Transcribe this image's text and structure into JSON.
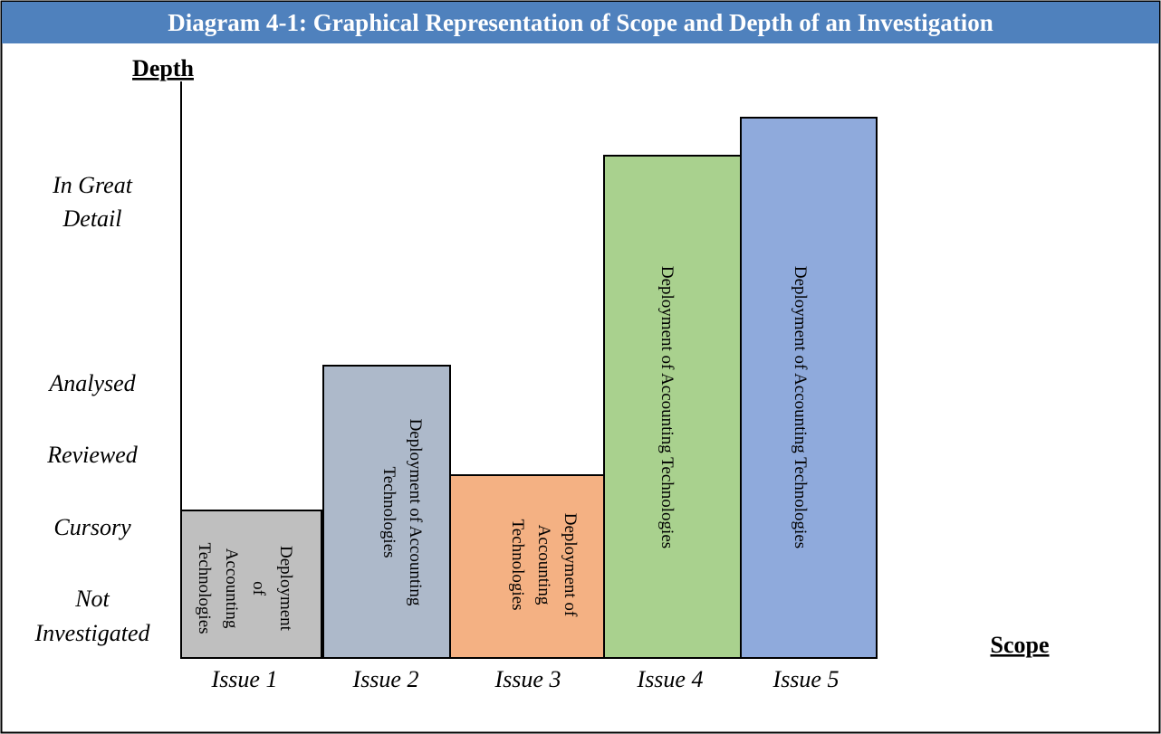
{
  "title": "Diagram 4-1: Graphical Representation of Scope and Depth of an Investigation",
  "y_axis_label": "Depth",
  "x_axis_label": "Scope",
  "depth_levels": [
    [
      "In Great",
      "Detail"
    ],
    [
      "Analysed"
    ],
    [
      "Reviewed"
    ],
    [
      "Cursory"
    ],
    [
      "Not",
      "Investigated"
    ]
  ],
  "bars": [
    {
      "label": "Issue 1",
      "text": [
        "Deployment",
        "of",
        "Accounting",
        "Technologies"
      ]
    },
    {
      "label": "Issue 2",
      "text": [
        "Deployment of Accounting",
        "Technologies"
      ]
    },
    {
      "label": "Issue 3",
      "text": [
        "Deployment of",
        "Accounting",
        "Technologies"
      ]
    },
    {
      "label": "Issue 4",
      "text": [
        "Deployment of Accounting Technologies"
      ]
    },
    {
      "label": "Issue 5",
      "text": [
        "Deployment of Accounting Technologies"
      ]
    }
  ]
}
